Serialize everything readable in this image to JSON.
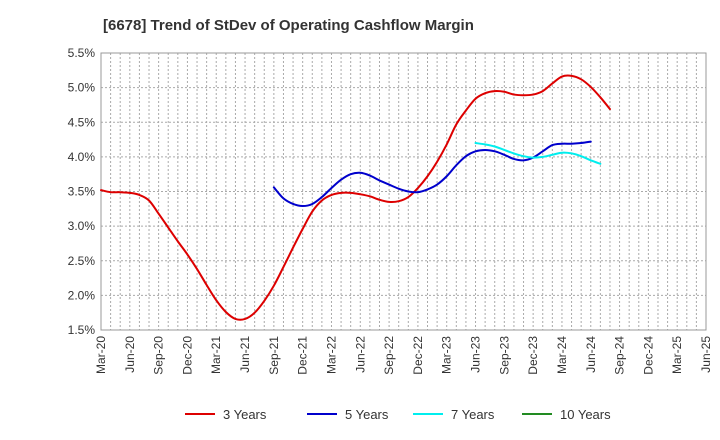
{
  "chart_data": {
    "type": "line",
    "title": "[6678]  Trend of StDev of Operating Cashflow Margin",
    "xlabel": "",
    "ylabel": "",
    "ylim": [
      1.5,
      5.5
    ],
    "y_ticks": [
      "1.5%",
      "2.0%",
      "2.5%",
      "3.0%",
      "3.5%",
      "4.0%",
      "4.5%",
      "5.0%",
      "5.5%"
    ],
    "y_tick_values": [
      1.5,
      2.0,
      2.5,
      3.0,
      3.5,
      4.0,
      4.5,
      5.0,
      5.5
    ],
    "x_ticks": [
      "Mar-20",
      "Jun-20",
      "Sep-20",
      "Dec-20",
      "Mar-21",
      "Jun-21",
      "Sep-21",
      "Dec-21",
      "Mar-22",
      "Jun-22",
      "Sep-22",
      "Dec-22",
      "Mar-23",
      "Jun-23",
      "Sep-23",
      "Dec-23",
      "Mar-24",
      "Jun-24",
      "Sep-24",
      "Dec-24",
      "Mar-25",
      "Jun-25"
    ],
    "grid": true,
    "legend_position": "bottom",
    "series": [
      {
        "name": "3 Years",
        "color": "#dd0000",
        "start_index": 0,
        "values": [
          3.52,
          3.49,
          3.49,
          3.48,
          3.45,
          3.37,
          3.18,
          2.98,
          2.78,
          2.59,
          2.38,
          2.15,
          1.93,
          1.76,
          1.66,
          1.66,
          1.75,
          1.92,
          2.14,
          2.41,
          2.69,
          2.96,
          3.21,
          3.37,
          3.45,
          3.48,
          3.48,
          3.46,
          3.43,
          3.38,
          3.35,
          3.36,
          3.42,
          3.55,
          3.72,
          3.93,
          4.18,
          4.47,
          4.67,
          4.84,
          4.92,
          4.95,
          4.94,
          4.9,
          4.89,
          4.9,
          4.95,
          5.06,
          5.16,
          5.17,
          5.12,
          5.01,
          4.86,
          4.69
        ]
      },
      {
        "name": "5 Years",
        "color": "#0000cc",
        "start_index": 18,
        "values": [
          3.56,
          3.4,
          3.32,
          3.29,
          3.32,
          3.42,
          3.55,
          3.67,
          3.75,
          3.77,
          3.73,
          3.66,
          3.6,
          3.54,
          3.5,
          3.49,
          3.53,
          3.6,
          3.72,
          3.88,
          4.01,
          4.08,
          4.1,
          4.08,
          4.03,
          3.97,
          3.95,
          3.99,
          4.08,
          4.17,
          4.19,
          4.19,
          4.2,
          4.22
        ]
      },
      {
        "name": "7 Years",
        "color": "#00eeee",
        "start_index": 39,
        "values": [
          4.2,
          4.18,
          4.15,
          4.1,
          4.05,
          4.01,
          3.99,
          4.0,
          4.03,
          4.06,
          4.05,
          4.01,
          3.95,
          3.9
        ]
      },
      {
        "name": "10 Years",
        "color": "#228b22",
        "start_index": 0,
        "values": []
      }
    ]
  }
}
